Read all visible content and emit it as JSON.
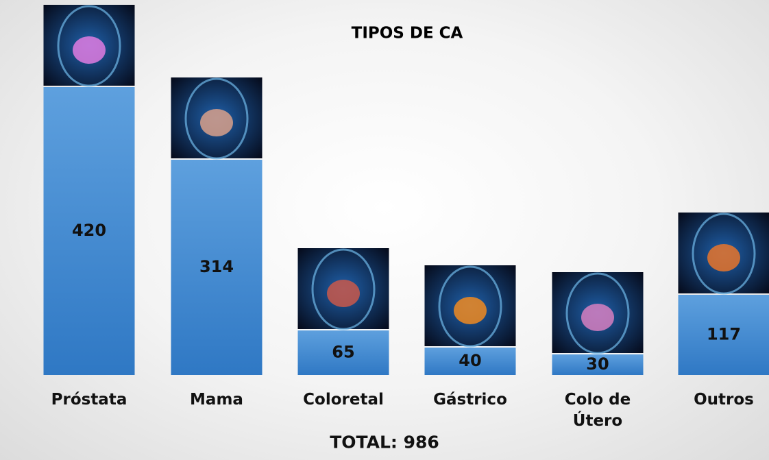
{
  "chart_data": {
    "type": "bar",
    "title": "TIPOS DE CA",
    "categories": [
      "Próstata",
      "Mama",
      "Coloretal",
      "Gástrico",
      "Colo de Útero",
      "Outros"
    ],
    "values": [
      420,
      314,
      65,
      40,
      30,
      117
    ],
    "color": "#4a8fd4",
    "footer": "TOTAL: 986"
  }
}
